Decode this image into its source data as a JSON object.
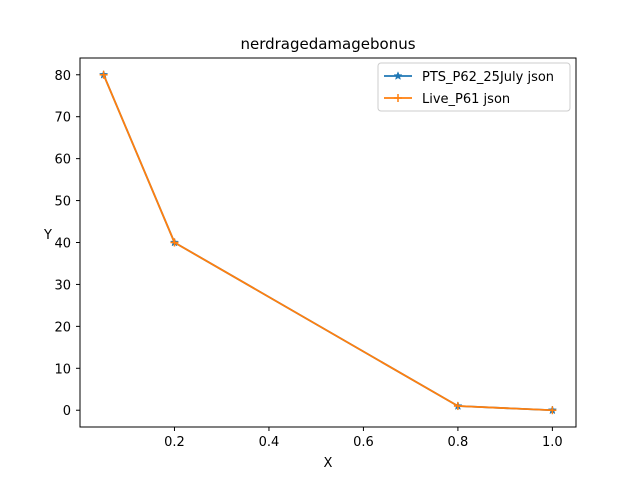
{
  "chart_data": {
    "type": "line",
    "title": "nerdragedamagebonus",
    "xlabel": "X",
    "ylabel": "Y",
    "xlim": [
      0.0,
      1.05
    ],
    "ylim": [
      -4.0,
      84.0
    ],
    "x_ticks": [
      0.2,
      0.4,
      0.6,
      0.8,
      1.0
    ],
    "x_tick_labels": [
      "0.2",
      "0.4",
      "0.6",
      "0.8",
      "1.0"
    ],
    "y_ticks": [
      0,
      10,
      20,
      30,
      40,
      50,
      60,
      70,
      80
    ],
    "y_tick_labels": [
      "0",
      "10",
      "20",
      "30",
      "40",
      "50",
      "60",
      "70",
      "80"
    ],
    "grid": false,
    "legend_position": "top-right",
    "series": [
      {
        "name": "PTS_P62_25July json",
        "color": "#1f77b4",
        "marker": "star",
        "x": [
          0.05,
          0.2,
          0.8,
          1.0
        ],
        "y": [
          80,
          40,
          1,
          0
        ]
      },
      {
        "name": "Live_P61 json",
        "color": "#ff7f0e",
        "marker": "plus",
        "x": [
          0.05,
          0.2,
          0.8,
          1.0
        ],
        "y": [
          80,
          40,
          1,
          0
        ]
      }
    ]
  }
}
